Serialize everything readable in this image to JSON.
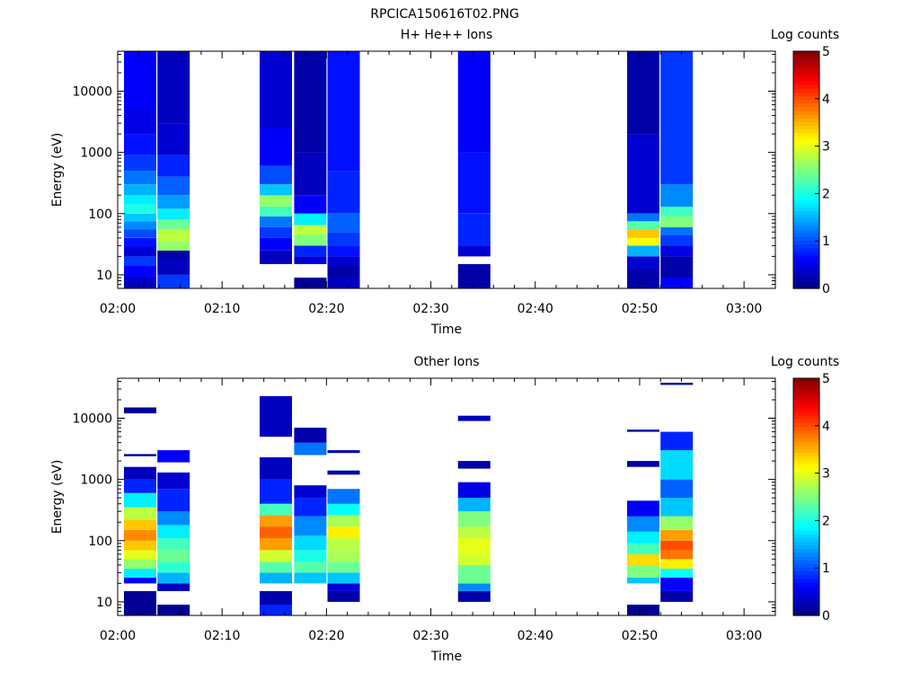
{
  "title": "RPCICA150616T02.PNG",
  "chart_data": [
    {
      "type": "heatmap",
      "title": "H+ He++ Ions",
      "xlabel": "Time",
      "ylabel": "Energy (eV)",
      "y_scale": "log",
      "ylim": [
        6,
        45000
      ],
      "xlim_minutes": [
        0,
        63
      ],
      "x_ticks": [
        {
          "label": "02:00",
          "minute": 0
        },
        {
          "label": "02:10",
          "minute": 10
        },
        {
          "label": "02:20",
          "minute": 20
        },
        {
          "label": "02:30",
          "minute": 30
        },
        {
          "label": "02:40",
          "minute": 40
        },
        {
          "label": "02:50",
          "minute": 50
        },
        {
          "label": "03:00",
          "minute": 60
        }
      ],
      "y_ticks": [
        {
          "label": "10",
          "value": 10
        },
        {
          "label": "100",
          "value": 100
        },
        {
          "label": "1000",
          "value": 1000
        },
        {
          "label": "10000",
          "value": 10000
        }
      ],
      "colorbar": {
        "label": "Log counts",
        "min": 0,
        "max": 5,
        "ticks": [
          "0",
          "1",
          "2",
          "3",
          "4",
          "5"
        ]
      },
      "columns": [
        {
          "start": 0.6,
          "end": 3.7,
          "bins": [
            [
              6,
              9,
              0.3
            ],
            [
              9,
              14,
              0.6
            ],
            [
              14,
              20,
              0.9
            ],
            [
              20,
              28,
              0.4
            ],
            [
              28,
              40,
              0.7
            ],
            [
              40,
              55,
              1.0
            ],
            [
              55,
              75,
              1.3
            ],
            [
              75,
              100,
              1.6
            ],
            [
              100,
              140,
              2.0
            ],
            [
              140,
              200,
              1.8
            ],
            [
              200,
              300,
              1.5
            ],
            [
              300,
              500,
              1.2
            ],
            [
              500,
              900,
              0.9
            ],
            [
              900,
              2000,
              0.7
            ],
            [
              2000,
              5000,
              0.5
            ],
            [
              5000,
              45000,
              0.6
            ]
          ]
        },
        {
          "start": 3.8,
          "end": 6.9,
          "bins": [
            [
              6,
              10,
              0.9
            ],
            [
              10,
              18,
              0.3
            ],
            [
              18,
              25,
              0.2
            ],
            [
              25,
              35,
              2.6
            ],
            [
              35,
              55,
              2.8
            ],
            [
              55,
              80,
              2.4
            ],
            [
              80,
              120,
              1.8
            ],
            [
              120,
              200,
              1.4
            ],
            [
              200,
              400,
              1.1
            ],
            [
              400,
              900,
              0.8
            ],
            [
              900,
              3000,
              0.4
            ],
            [
              3000,
              45000,
              0.3
            ]
          ]
        },
        {
          "start": 13.6,
          "end": 16.7,
          "bins": [
            [
              15,
              25,
              0.3
            ],
            [
              25,
              40,
              0.6
            ],
            [
              40,
              60,
              0.9
            ],
            [
              60,
              90,
              1.2
            ],
            [
              90,
              130,
              2.2
            ],
            [
              130,
              200,
              2.6
            ],
            [
              200,
              300,
              1.6
            ],
            [
              300,
              600,
              1.0
            ],
            [
              600,
              2500,
              0.6
            ],
            [
              2500,
              45000,
              0.4
            ]
          ]
        },
        {
          "start": 16.9,
          "end": 20.0,
          "bins": [
            [
              6,
              9,
              0.1
            ],
            [
              15,
              20,
              0.4
            ],
            [
              20,
              30,
              0.8
            ],
            [
              30,
              45,
              2.5
            ],
            [
              45,
              65,
              2.8
            ],
            [
              65,
              100,
              1.8
            ],
            [
              100,
              200,
              0.6
            ],
            [
              200,
              1000,
              0.3
            ],
            [
              1000,
              45000,
              0.2
            ]
          ]
        },
        {
          "start": 20.1,
          "end": 23.2,
          "bins": [
            [
              6,
              9,
              0.3
            ],
            [
              9,
              14,
              0.2
            ],
            [
              14,
              20,
              0.4
            ],
            [
              20,
              30,
              0.7
            ],
            [
              30,
              50,
              0.9
            ],
            [
              50,
              100,
              1.1
            ],
            [
              100,
              500,
              0.8
            ],
            [
              500,
              45000,
              0.7
            ]
          ]
        },
        {
          "start": 32.6,
          "end": 35.7,
          "bins": [
            [
              6,
              15,
              0.2
            ],
            [
              20,
              30,
              0.4
            ],
            [
              30,
              100,
              0.8
            ],
            [
              100,
              1000,
              0.7
            ],
            [
              1000,
              45000,
              0.6
            ]
          ]
        },
        {
          "start": 48.8,
          "end": 51.9,
          "bins": [
            [
              6,
              12,
              0.2
            ],
            [
              12,
              20,
              0.4
            ],
            [
              20,
              30,
              1.5
            ],
            [
              30,
              40,
              3.1
            ],
            [
              40,
              55,
              3.4
            ],
            [
              55,
              75,
              2.3
            ],
            [
              75,
              100,
              1.2
            ],
            [
              100,
              2000,
              0.4
            ],
            [
              2000,
              45000,
              0.2
            ]
          ]
        },
        {
          "start": 52.0,
          "end": 55.1,
          "bins": [
            [
              6,
              9,
              0.6
            ],
            [
              9,
              20,
              0.2
            ],
            [
              20,
              30,
              0.5
            ],
            [
              30,
              45,
              0.9
            ],
            [
              45,
              60,
              1.2
            ],
            [
              60,
              90,
              2.5
            ],
            [
              90,
              130,
              2.2
            ],
            [
              130,
              300,
              1.3
            ],
            [
              300,
              45000,
              0.9
            ]
          ]
        }
      ]
    },
    {
      "type": "heatmap",
      "title": "Other Ions",
      "xlabel": "Time",
      "ylabel": "Energy (eV)",
      "y_scale": "log",
      "ylim": [
        6,
        45000
      ],
      "xlim_minutes": [
        0,
        63
      ],
      "x_ticks": [
        {
          "label": "02:00",
          "minute": 0
        },
        {
          "label": "02:10",
          "minute": 10
        },
        {
          "label": "02:20",
          "minute": 20
        },
        {
          "label": "02:30",
          "minute": 30
        },
        {
          "label": "02:40",
          "minute": 40
        },
        {
          "label": "02:50",
          "minute": 50
        },
        {
          "label": "03:00",
          "minute": 60
        }
      ],
      "y_ticks": [
        {
          "label": "10",
          "value": 10
        },
        {
          "label": "100",
          "value": 100
        },
        {
          "label": "1000",
          "value": 1000
        },
        {
          "label": "10000",
          "value": 10000
        }
      ],
      "colorbar": {
        "label": "Log counts",
        "min": 0,
        "max": 5,
        "ticks": [
          "0",
          "1",
          "2",
          "3",
          "4",
          "5"
        ]
      },
      "columns": [
        {
          "start": 0.6,
          "end": 3.7,
          "bins": [
            [
              6,
              15,
              0.1
            ],
            [
              20,
              25,
              0.6
            ],
            [
              25,
              35,
              1.8
            ],
            [
              35,
              50,
              2.6
            ],
            [
              50,
              70,
              3.0
            ],
            [
              70,
              100,
              3.4
            ],
            [
              100,
              150,
              3.7
            ],
            [
              150,
              220,
              3.4
            ],
            [
              220,
              350,
              2.8
            ],
            [
              350,
              600,
              1.8
            ],
            [
              600,
              1000,
              0.8
            ],
            [
              1000,
              1600,
              0.3
            ],
            [
              2400,
              2600,
              0.2
            ],
            [
              12000,
              15000,
              0.1
            ]
          ]
        },
        {
          "start": 3.8,
          "end": 6.9,
          "bins": [
            [
              6,
              9,
              0.1
            ],
            [
              15,
              20,
              0.3
            ],
            [
              20,
              30,
              1.5
            ],
            [
              30,
              45,
              2.1
            ],
            [
              45,
              70,
              2.4
            ],
            [
              70,
              110,
              2.2
            ],
            [
              110,
              180,
              1.8
            ],
            [
              180,
              300,
              1.3
            ],
            [
              300,
              700,
              0.8
            ],
            [
              700,
              1300,
              0.4
            ],
            [
              1900,
              3000,
              0.6
            ]
          ]
        },
        {
          "start": 13.6,
          "end": 16.7,
          "bins": [
            [
              6,
              9,
              0.8
            ],
            [
              9,
              15,
              0.2
            ],
            [
              20,
              30,
              1.5
            ],
            [
              30,
              45,
              2.3
            ],
            [
              45,
              70,
              2.9
            ],
            [
              70,
              110,
              3.6
            ],
            [
              110,
              170,
              3.9
            ],
            [
              170,
              260,
              3.6
            ],
            [
              260,
              400,
              2.2
            ],
            [
              400,
              1000,
              0.8
            ],
            [
              1000,
              2300,
              0.3
            ],
            [
              5000,
              23000,
              0.3
            ]
          ]
        },
        {
          "start": 16.9,
          "end": 20.0,
          "bins": [
            [
              20,
              30,
              1.6
            ],
            [
              30,
              45,
              2.3
            ],
            [
              45,
              70,
              2.0
            ],
            [
              70,
              120,
              1.7
            ],
            [
              120,
              250,
              1.3
            ],
            [
              250,
              500,
              0.8
            ],
            [
              500,
              800,
              0.4
            ],
            [
              2500,
              4000,
              1.2
            ],
            [
              4000,
              7000,
              0.2
            ]
          ]
        },
        {
          "start": 20.1,
          "end": 23.2,
          "bins": [
            [
              10,
              15,
              0.2
            ],
            [
              15,
              20,
              0.4
            ],
            [
              20,
              30,
              1.6
            ],
            [
              30,
              45,
              2.4
            ],
            [
              45,
              70,
              2.7
            ],
            [
              70,
              110,
              2.8
            ],
            [
              110,
              170,
              3.2
            ],
            [
              170,
              260,
              2.7
            ],
            [
              260,
              400,
              1.9
            ],
            [
              400,
              700,
              1.2
            ],
            [
              1200,
              1400,
              0.2
            ],
            [
              2700,
              3000,
              0.2
            ]
          ]
        },
        {
          "start": 32.6,
          "end": 35.7,
          "bins": [
            [
              10,
              15,
              0.2
            ],
            [
              15,
              20,
              1.3
            ],
            [
              20,
              40,
              2.4
            ],
            [
              40,
              60,
              2.9
            ],
            [
              60,
              110,
              3.0
            ],
            [
              110,
              170,
              2.8
            ],
            [
              170,
              300,
              2.5
            ],
            [
              300,
              500,
              1.5
            ],
            [
              500,
              900,
              0.5
            ],
            [
              1500,
              2000,
              0.2
            ],
            [
              9000,
              11000,
              0.3
            ]
          ]
        },
        {
          "start": 48.8,
          "end": 51.9,
          "bins": [
            [
              6,
              9,
              0.1
            ],
            [
              20,
              25,
              1.6
            ],
            [
              25,
              40,
              2.5
            ],
            [
              40,
              60,
              3.3
            ],
            [
              60,
              90,
              2.2
            ],
            [
              90,
              140,
              1.8
            ],
            [
              140,
              250,
              1.3
            ],
            [
              250,
              450,
              0.6
            ],
            [
              1600,
              2000,
              0.2
            ],
            [
              6000,
              6500,
              0.2
            ]
          ]
        },
        {
          "start": 52.0,
          "end": 55.1,
          "bins": [
            [
              10,
              15,
              0.2
            ],
            [
              15,
              25,
              0.6
            ],
            [
              25,
              35,
              1.9
            ],
            [
              35,
              50,
              3.2
            ],
            [
              50,
              70,
              3.8
            ],
            [
              70,
              100,
              4.0
            ],
            [
              100,
              150,
              3.6
            ],
            [
              150,
              250,
              2.6
            ],
            [
              250,
              500,
              1.6
            ],
            [
              500,
              1000,
              1.1
            ],
            [
              1000,
              3000,
              1.7
            ],
            [
              3000,
              6000,
              0.8
            ],
            [
              35000,
              38000,
              0.2
            ]
          ]
        }
      ]
    }
  ]
}
